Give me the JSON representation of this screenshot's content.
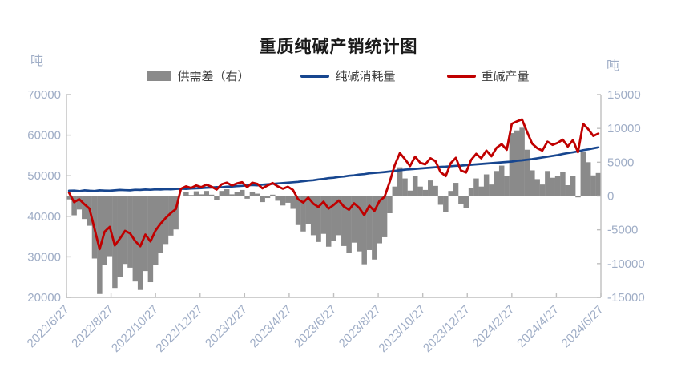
{
  "title": "重质纯碱产销统计图",
  "left_axis": {
    "unit": "吨",
    "ticks": [
      70000,
      60000,
      50000,
      40000,
      30000,
      20000
    ],
    "min": 20000,
    "max": 70000
  },
  "right_axis": {
    "unit": "吨",
    "ticks": [
      15000,
      10000,
      5000,
      0,
      -5000,
      -10000,
      -15000
    ],
    "min": -15000,
    "max": 15000
  },
  "legend": {
    "items": [
      {
        "label": "供需差（右）",
        "swatch": "bar",
        "color": "#8a8a8a"
      },
      {
        "label": "纯碱消耗量",
        "swatch": "line",
        "color": "#17468f"
      },
      {
        "label": "重碱产量",
        "swatch": "line",
        "color": "#c00000"
      }
    ]
  },
  "colors": {
    "bar": "#8a8a8a",
    "consumption_line": "#17468f",
    "production_line": "#c00000",
    "axis_line": "#bfbfbf",
    "zero_line": "#aeaeae",
    "axis_text": "#9fadc6",
    "legend_text": "#404040",
    "title_text": "#1a1a1a"
  },
  "chart_data": {
    "type": "bar+line",
    "title": "重质纯碱产销统计图",
    "x_note": "weekly observations from 2022/6/27 to 2024/6/27",
    "x_tick_labels": [
      "2022/6/27",
      "2022/8/27",
      "2022/10/27",
      "2022/12/27",
      "2023/2/27",
      "2023/4/27",
      "2023/6/27",
      "2023/8/27",
      "2023/10/27",
      "2023/12/27",
      "2024/2/27",
      "2024/4/27",
      "2024/6/27"
    ],
    "left_ylabel": "吨",
    "right_ylabel": "吨",
    "left_ylim": [
      20000,
      70000
    ],
    "right_ylim": [
      -15000,
      15000
    ],
    "grid": "zero-line only",
    "legend_position": "top",
    "series": [
      {
        "name": "供需差（右）",
        "type": "bar",
        "axis": "right",
        "color": "#8a8a8a",
        "derived": "重碱产量 minus 纯碱消耗量 (production minus consumption)"
      },
      {
        "name": "纯碱消耗量",
        "type": "line",
        "axis": "left",
        "color": "#17468f",
        "values": [
          46300,
          46350,
          46200,
          46400,
          46300,
          46250,
          46400,
          46350,
          46300,
          46400,
          46500,
          46450,
          46400,
          46550,
          46500,
          46600,
          46550,
          46650,
          46600,
          46700,
          46650,
          46750,
          46800,
          46750,
          46850,
          46900,
          46950,
          47050,
          47100,
          47200,
          47150,
          47300,
          47350,
          47450,
          47500,
          47600,
          47700,
          47650,
          47800,
          47900,
          48000,
          48100,
          48200,
          48300,
          48400,
          48500,
          48650,
          48800,
          48900,
          49100,
          49200,
          49400,
          49500,
          49700,
          49800,
          50000,
          50100,
          50300,
          50400,
          50600,
          50700,
          50800,
          50900,
          51050,
          51200,
          51350,
          51500,
          51600,
          51700,
          51800,
          51900,
          52000,
          52100,
          52200,
          52250,
          52350,
          52450,
          52500,
          52600,
          52700,
          52800,
          52900,
          53000,
          53100,
          53200,
          53300,
          53400,
          53500,
          53700,
          53800,
          53950,
          54100,
          54300,
          54500,
          54700,
          54900,
          55100,
          55350,
          55600,
          55800,
          56000,
          56300,
          56500,
          56750,
          57000
        ]
      },
      {
        "name": "重碱产量",
        "type": "line",
        "axis": "left",
        "color": "#c00000",
        "values": [
          45800,
          43500,
          44200,
          43000,
          41900,
          37000,
          31900,
          36200,
          37400,
          32800,
          34500,
          36400,
          35800,
          33900,
          32600,
          35500,
          33800,
          36500,
          38200,
          39600,
          40800,
          41800,
          46800,
          47400,
          47000,
          47600,
          47200,
          47800,
          47300,
          46600,
          47900,
          48300,
          47600,
          48100,
          48400,
          47200,
          48300,
          48000,
          46900,
          47600,
          48200,
          47400,
          46800,
          47300,
          46500,
          44200,
          43400,
          44600,
          43100,
          42300,
          43600,
          41900,
          42800,
          43900,
          42400,
          41600,
          43200,
          42100,
          40300,
          42600,
          41300,
          43800,
          44800,
          48500,
          52600,
          55600,
          54100,
          52400,
          54700,
          53200,
          52800,
          54300,
          53600,
          50900,
          49900,
          53100,
          54400,
          51300,
          50800,
          53900,
          55400,
          54300,
          56200,
          54800,
          56900,
          57800,
          56400,
          62800,
          63400,
          63900,
          60800,
          57900,
          56800,
          56200,
          58400,
          57600,
          58100,
          58900,
          57200,
          58800,
          55800,
          62800,
          61500,
          59800,
          60400
        ]
      }
    ]
  }
}
